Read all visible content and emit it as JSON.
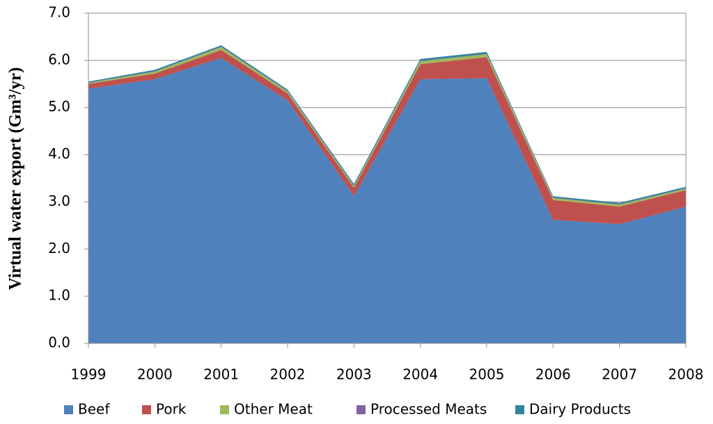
{
  "chart_data": {
    "type": "stacked_area",
    "y_label": "Virtual water export (Gm³/yr)",
    "categories": [
      "1999",
      "2000",
      "2001",
      "2002",
      "2003",
      "2004",
      "2005",
      "2006",
      "2007",
      "2008"
    ],
    "series": [
      {
        "name": "Beef",
        "color": "#4f81bd",
        "values": [
          5.4,
          5.6,
          6.05,
          5.15,
          3.12,
          5.6,
          5.62,
          2.62,
          2.53,
          2.9
        ]
      },
      {
        "name": "Pork",
        "color": "#c0504d",
        "values": [
          0.1,
          0.12,
          0.17,
          0.15,
          0.18,
          0.32,
          0.45,
          0.42,
          0.37,
          0.35
        ]
      },
      {
        "name": "Other Meat",
        "color": "#9bbb59",
        "values": [
          0.02,
          0.04,
          0.06,
          0.04,
          0.03,
          0.06,
          0.06,
          0.04,
          0.04,
          0.03
        ]
      },
      {
        "name": "Processed Meats",
        "color": "#8064a2",
        "values": [
          0.01,
          0.01,
          0.01,
          0.01,
          0.01,
          0.01,
          0.01,
          0.01,
          0.01,
          0.01
        ]
      },
      {
        "name": "Dairy Products",
        "color": "#31849b",
        "values": [
          0.02,
          0.03,
          0.03,
          0.03,
          0.04,
          0.04,
          0.04,
          0.03,
          0.03,
          0.03
        ]
      }
    ],
    "ylim": [
      0,
      7
    ],
    "yticks": [
      {
        "value": 0,
        "label": "0.0"
      },
      {
        "value": 1,
        "label": "1.0"
      },
      {
        "value": 2,
        "label": "2.0"
      },
      {
        "value": 3,
        "label": "3.0"
      },
      {
        "value": 4,
        "label": "4.0"
      },
      {
        "value": 5,
        "label": "5.0"
      },
      {
        "value": 6,
        "label": "6.0"
      },
      {
        "value": 7,
        "label": "7.0"
      }
    ],
    "grid": true,
    "legend": "bottom"
  }
}
